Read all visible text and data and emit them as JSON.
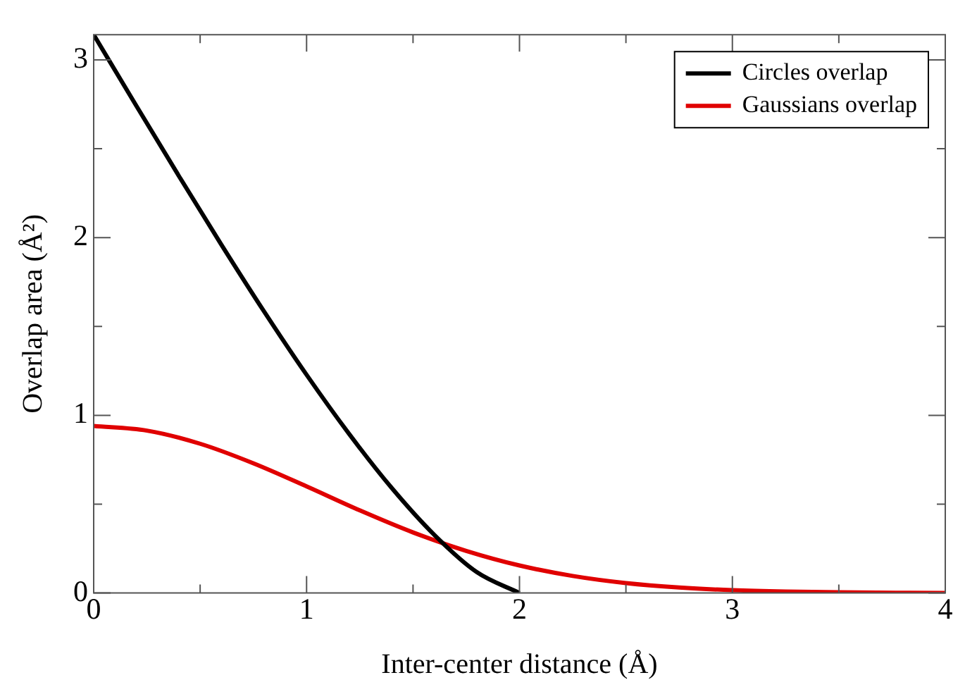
{
  "chart_data": {
    "type": "line",
    "xlabel": "Inter-center distance (Å)",
    "ylabel": "Overlap area (Å²)",
    "xlim": [
      0,
      4
    ],
    "xticks": [
      0,
      {
        "value": 0.5,
        "label": null
      },
      1,
      {
        "value": 1.5,
        "label": null
      },
      2,
      {
        "value": 2.5,
        "label": null
      },
      3,
      {
        "value": 3.5,
        "label": null
      },
      4
    ],
    "ylim": [
      0,
      3.142
    ],
    "yticks": [
      0,
      {
        "value": 0.5,
        "label": null
      },
      1,
      {
        "value": 1.5,
        "label": null
      },
      2,
      {
        "value": 2.5,
        "label": null
      },
      3
    ],
    "grid": false,
    "legend": "top right",
    "marker": "none",
    "line_style": "solid",
    "series": [
      {
        "name": "Circles overlap",
        "color": "#000000",
        "x": [
          0,
          0.2,
          0.4,
          0.6,
          0.8,
          1.0,
          1.2,
          1.4,
          1.6,
          1.8,
          2.0
        ],
        "values": [
          3.142,
          2.742,
          2.347,
          1.96,
          1.585,
          1.228,
          0.895,
          0.591,
          0.327,
          0.117,
          0
        ]
      },
      {
        "name": "Gaussians overlap",
        "color": "#e00000",
        "x": [
          0,
          0.25,
          0.5,
          0.75,
          1,
          1.25,
          1.5,
          1.75,
          2,
          2.25,
          2.5,
          2.75,
          3,
          3.25,
          3.5,
          4
        ],
        "values": [
          0.94,
          0.914,
          0.84,
          0.73,
          0.6,
          0.465,
          0.341,
          0.237,
          0.155,
          0.096,
          0.056,
          0.031,
          0.016,
          0.008,
          0.004,
          0
        ]
      }
    ]
  }
}
